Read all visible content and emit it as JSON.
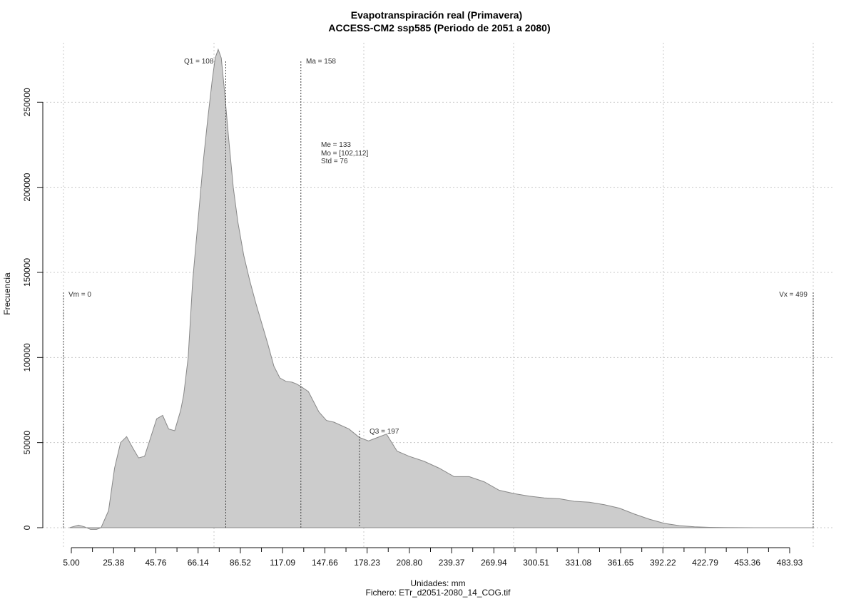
{
  "chart_data": {
    "type": "area",
    "title": "Evapotranspiración real (Primavera)",
    "subtitle": "ACCESS-CM2 ssp585 (Periodo de 2051 a 2080)",
    "xlabel": "Unidades: mm",
    "ylabel": "Frecuencia",
    "source": "Fichero: ETr_d2051-2080_14_COG.tif",
    "x_ticks": [
      "5.00",
      "25.38",
      "45.76",
      "66.14",
      "86.52",
      "117.09",
      "147.66",
      "178.23",
      "208.80",
      "239.37",
      "269.94",
      "300.51",
      "331.08",
      "361.65",
      "392.22",
      "422.79",
      "453.36",
      "483.93"
    ],
    "y_ticks": [
      0,
      50000,
      100000,
      150000,
      200000,
      250000
    ],
    "xlim": [
      0,
      499
    ],
    "ylim": [
      0,
      280000
    ],
    "grid": true,
    "fill_color": "#cccccc",
    "line_color": "#888888",
    "series": [
      {
        "x": [
          4,
          6,
          10,
          14,
          18,
          22,
          25,
          30,
          34,
          38,
          42,
          46,
          50,
          54,
          58,
          62,
          66,
          70,
          74,
          78,
          80,
          83,
          86,
          90,
          93,
          96,
          99,
          101,
          103,
          105,
          107,
          110,
          113,
          116,
          120,
          124,
          128,
          132,
          136,
          140,
          144,
          148,
          152,
          155,
          158,
          163,
          170,
          175,
          180,
          190,
          197,
          203,
          209,
          215,
          222,
          230,
          240,
          250,
          260,
          270,
          280,
          290,
          300,
          310,
          320,
          330,
          340,
          350,
          360,
          370,
          380,
          390,
          400,
          410,
          420,
          430,
          440,
          450,
          460,
          470,
          480,
          490,
          499
        ],
        "y": [
          0,
          500,
          1500,
          500,
          -1000,
          -1000,
          0,
          10000,
          35000,
          50000,
          53500,
          47000,
          41000,
          42000,
          53000,
          64000,
          66000,
          58000,
          57000,
          69000,
          78000,
          100000,
          145000,
          185000,
          215000,
          240000,
          263000,
          276000,
          281000,
          276000,
          258000,
          228000,
          200000,
          180000,
          160000,
          145000,
          132000,
          120000,
          108000,
          95000,
          88000,
          86000,
          85500,
          84500,
          83000,
          80000,
          68000,
          63000,
          62000,
          58000,
          53000,
          51000,
          53000,
          55000,
          45000,
          42000,
          39000,
          35000,
          30000,
          30000,
          27000,
          22000,
          20000,
          18500,
          17500,
          17000,
          15500,
          15000,
          13500,
          11500,
          8000,
          5000,
          2500,
          1200,
          500,
          200,
          100,
          50,
          20,
          10,
          5,
          2,
          0
        ]
      }
    ],
    "annotations": {
      "q1": "Q1 = 108",
      "ma": "Ma = 158",
      "me": "Me = 133",
      "mo": "Mo = [102,112]",
      "std": "Std = 76",
      "q3": "Q3 = 197",
      "vm": "Vm = 0",
      "vx": "Vx = 499"
    },
    "markers": {
      "q1": 108,
      "ma": 158,
      "q3": 197,
      "vm": 0,
      "vx": 499
    }
  }
}
